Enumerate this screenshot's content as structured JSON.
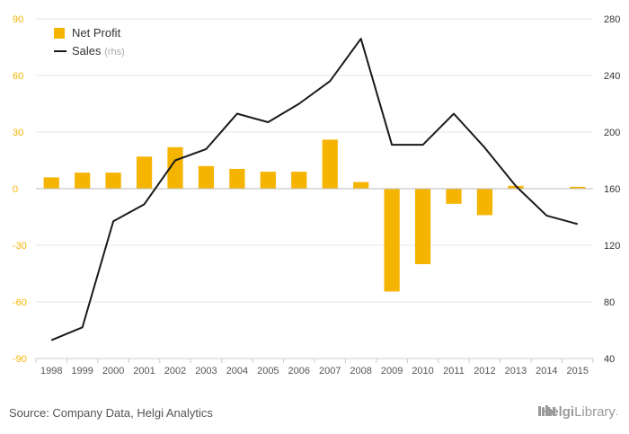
{
  "chart_data": {
    "type": "bar",
    "categories": [
      "1998",
      "1999",
      "2000",
      "2001",
      "2002",
      "2003",
      "2004",
      "2005",
      "2006",
      "2007",
      "2008",
      "2009",
      "2010",
      "2011",
      "2012",
      "2013",
      "2014",
      "2015"
    ],
    "series": [
      {
        "name": "Net Profit",
        "type": "bar",
        "axis": "left",
        "color": "#f5b400",
        "values": [
          6,
          8.5,
          8.5,
          17,
          22,
          12,
          10.5,
          9,
          9,
          26,
          3.5,
          -54.5,
          -40,
          -8,
          -14,
          1.5,
          0,
          1
        ]
      },
      {
        "name": "Sales",
        "name_suffix": "(rhs)",
        "type": "line",
        "axis": "right",
        "color": "#1a1a1a",
        "values": [
          53,
          62,
          137,
          149,
          180,
          188,
          213,
          207,
          220,
          236,
          266,
          191,
          191,
          213,
          189,
          162,
          141,
          135
        ]
      }
    ],
    "y_left": {
      "min": -90,
      "max": 90,
      "ticks": [
        90,
        60,
        30,
        0,
        -30,
        -60,
        -90
      ]
    },
    "y_right": {
      "min": 40,
      "max": 280,
      "ticks": [
        280,
        240,
        200,
        160,
        120,
        80,
        40
      ]
    },
    "legend_position": "top-left",
    "grid": "horizontal",
    "colors": {
      "axis_left": "#f5b400",
      "axis_right": "#333333",
      "grid": "#e6e6e6",
      "zero_line": "#bbbbbb"
    }
  },
  "footer": {
    "source": "Source: Company Data, Helgi Analytics",
    "brand_bold": "Helgi",
    "brand_regular": "Library",
    "brand_dot": "."
  }
}
